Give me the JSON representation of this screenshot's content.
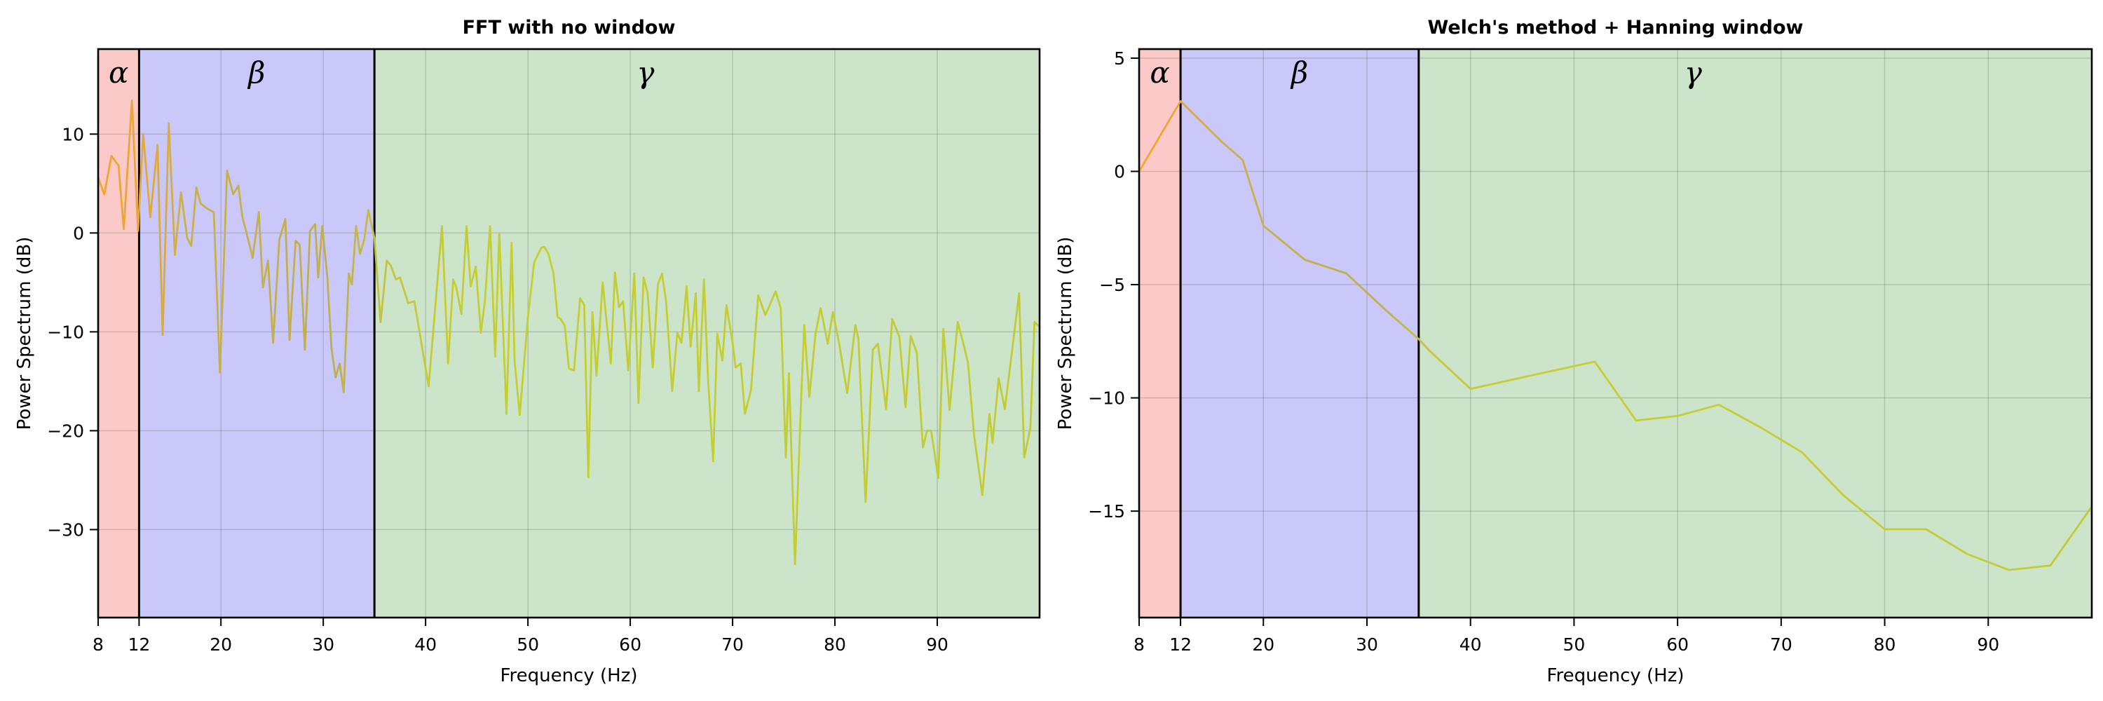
{
  "figure": {
    "background": "#ffffff",
    "grid_color": "rgba(70,70,70,0.22)",
    "spine_color": "#000000",
    "band_boundary_color": "#000000",
    "line_gradient": [
      [
        8,
        "#F3A72D"
      ],
      [
        12,
        "#E7A739"
      ],
      [
        17,
        "#C9B04E"
      ],
      [
        31,
        "#BDAF4F"
      ],
      [
        37,
        "#C6C73B"
      ],
      [
        47,
        "#C5CF33"
      ],
      [
        100,
        "#C2CB35"
      ]
    ]
  },
  "chart_data": [
    {
      "type": "line",
      "title": "FFT with no window",
      "xlabel": "Frequency (Hz)",
      "ylabel": "Power Spectrum (dB)",
      "xlim": [
        8,
        100
      ],
      "ylim": [
        -38.9,
        18.6
      ],
      "xticks": [
        8,
        12,
        20,
        30,
        40,
        50,
        60,
        70,
        80,
        90
      ],
      "yticks": [
        10,
        0,
        -10,
        -20,
        -30
      ],
      "grid": true,
      "legend": "none",
      "bands": [
        {
          "name": "alpha",
          "label": "α",
          "x0": 8,
          "x1": 12,
          "label_x": 10,
          "fill": "#FBC9C7"
        },
        {
          "name": "beta",
          "label": "β",
          "x0": 12,
          "x1": 35,
          "label_x": 23.5,
          "fill": "#C9C8F8"
        },
        {
          "name": "gamma",
          "label": "γ",
          "x0": 35,
          "x1": 100,
          "label_x": 61.5,
          "fill": "#CBE4CA"
        }
      ],
      "series": [
        {
          "name": "fft-power-spectrum",
          "points": [
            [
              8.0,
              5.6
            ],
            [
              8.6,
              3.9
            ],
            [
              9.3,
              7.8
            ],
            [
              10.0,
              6.8
            ],
            [
              10.5,
              0.4
            ],
            [
              11.3,
              13.4
            ],
            [
              11.9,
              0.2
            ],
            [
              12.4,
              10.0
            ],
            [
              13.1,
              1.6
            ],
            [
              13.8,
              8.9
            ],
            [
              14.3,
              -10.3
            ],
            [
              14.9,
              11.1
            ],
            [
              15.5,
              -2.2
            ],
            [
              16.1,
              4.1
            ],
            [
              16.7,
              -0.5
            ],
            [
              17.1,
              -1.3
            ],
            [
              17.6,
              4.6
            ],
            [
              18.0,
              3.0
            ],
            [
              18.6,
              2.5
            ],
            [
              19.3,
              2.1
            ],
            [
              19.9,
              -14.1
            ],
            [
              20.6,
              6.3
            ],
            [
              21.2,
              3.9
            ],
            [
              21.7,
              4.8
            ],
            [
              22.1,
              1.6
            ],
            [
              22.5,
              0.0
            ],
            [
              23.1,
              -2.5
            ],
            [
              23.7,
              2.1
            ],
            [
              24.1,
              -5.5
            ],
            [
              24.6,
              -2.8
            ],
            [
              25.1,
              -11.1
            ],
            [
              25.7,
              -0.7
            ],
            [
              26.3,
              1.4
            ],
            [
              26.7,
              -10.8
            ],
            [
              27.3,
              -0.8
            ],
            [
              27.7,
              -1.2
            ],
            [
              28.2,
              -11.8
            ],
            [
              28.7,
              0.2
            ],
            [
              29.2,
              0.9
            ],
            [
              29.5,
              -4.5
            ],
            [
              29.9,
              0.7
            ],
            [
              30.4,
              -4.5
            ],
            [
              30.8,
              -11.6
            ],
            [
              31.2,
              -14.6
            ],
            [
              31.6,
              -13.2
            ],
            [
              32.0,
              -16.1
            ],
            [
              32.5,
              -4.1
            ],
            [
              32.8,
              -5.2
            ],
            [
              33.2,
              0.7
            ],
            [
              33.6,
              -2.1
            ],
            [
              34.0,
              -0.7
            ],
            [
              34.4,
              2.3
            ],
            [
              35.0,
              -0.5
            ],
            [
              35.6,
              -9.0
            ],
            [
              36.2,
              -2.8
            ],
            [
              36.6,
              -3.3
            ],
            [
              37.1,
              -4.7
            ],
            [
              37.5,
              -4.5
            ],
            [
              38.3,
              -7.1
            ],
            [
              38.9,
              -6.9
            ],
            [
              40.3,
              -15.5
            ],
            [
              41.6,
              0.7
            ],
            [
              42.2,
              -13.2
            ],
            [
              42.7,
              -4.7
            ],
            [
              43.0,
              -5.5
            ],
            [
              43.5,
              -8.2
            ],
            [
              44.0,
              0.7
            ],
            [
              44.4,
              -5.4
            ],
            [
              44.9,
              -3.4
            ],
            [
              45.4,
              -10.1
            ],
            [
              45.8,
              -6.8
            ],
            [
              46.3,
              0.7
            ],
            [
              46.8,
              -12.5
            ],
            [
              47.2,
              0.0
            ],
            [
              47.9,
              -18.3
            ],
            [
              48.4,
              -1.0
            ],
            [
              48.7,
              -13.0
            ],
            [
              49.2,
              -18.4
            ],
            [
              50.0,
              -8.5
            ],
            [
              50.6,
              -3.0
            ],
            [
              51.3,
              -1.5
            ],
            [
              51.6,
              -1.4
            ],
            [
              52.0,
              -2.1
            ],
            [
              52.5,
              -4.1
            ],
            [
              52.9,
              -8.5
            ],
            [
              53.2,
              -8.7
            ],
            [
              53.6,
              -9.4
            ],
            [
              54.0,
              -13.7
            ],
            [
              54.5,
              -13.9
            ],
            [
              55.1,
              -6.6
            ],
            [
              55.5,
              -7.3
            ],
            [
              55.9,
              -24.7
            ],
            [
              56.3,
              -8.0
            ],
            [
              56.7,
              -14.4
            ],
            [
              57.3,
              -5.0
            ],
            [
              58.1,
              -13.2
            ],
            [
              58.5,
              -4.0
            ],
            [
              58.9,
              -7.5
            ],
            [
              59.3,
              -6.9
            ],
            [
              59.8,
              -13.9
            ],
            [
              60.4,
              -4.1
            ],
            [
              60.8,
              -17.2
            ],
            [
              61.3,
              -4.5
            ],
            [
              61.7,
              -6.1
            ],
            [
              62.2,
              -13.6
            ],
            [
              62.7,
              -5.2
            ],
            [
              63.1,
              -4.1
            ],
            [
              63.5,
              -6.9
            ],
            [
              64.1,
              -16.0
            ],
            [
              64.6,
              -10.1
            ],
            [
              65.0,
              -11.1
            ],
            [
              65.5,
              -5.4
            ],
            [
              65.9,
              -11.5
            ],
            [
              66.4,
              -6.1
            ],
            [
              66.7,
              -16.0
            ],
            [
              67.2,
              -4.7
            ],
            [
              67.6,
              -14.7
            ],
            [
              68.1,
              -23.1
            ],
            [
              68.5,
              -10.2
            ],
            [
              69.0,
              -12.9
            ],
            [
              69.4,
              -7.3
            ],
            [
              70.0,
              -11.1
            ],
            [
              70.3,
              -13.6
            ],
            [
              70.8,
              -13.2
            ],
            [
              71.2,
              -18.3
            ],
            [
              71.8,
              -15.9
            ],
            [
              72.5,
              -6.3
            ],
            [
              73.2,
              -8.3
            ],
            [
              74.2,
              -5.9
            ],
            [
              74.7,
              -7.6
            ],
            [
              75.2,
              -22.7
            ],
            [
              75.5,
              -14.2
            ],
            [
              76.1,
              -33.5
            ],
            [
              76.7,
              -16.7
            ],
            [
              77.0,
              -9.3
            ],
            [
              77.5,
              -16.6
            ],
            [
              78.1,
              -10.2
            ],
            [
              78.6,
              -7.6
            ],
            [
              79.3,
              -11.2
            ],
            [
              79.8,
              -8.0
            ],
            [
              80.4,
              -11.1
            ],
            [
              81.2,
              -16.2
            ],
            [
              82.0,
              -9.3
            ],
            [
              82.3,
              -10.7
            ],
            [
              83.0,
              -27.2
            ],
            [
              83.7,
              -11.8
            ],
            [
              84.2,
              -11.2
            ],
            [
              85.0,
              -17.8
            ],
            [
              85.6,
              -8.7
            ],
            [
              86.3,
              -10.5
            ],
            [
              86.9,
              -17.6
            ],
            [
              87.4,
              -10.4
            ],
            [
              88.0,
              -12.1
            ],
            [
              88.6,
              -21.7
            ],
            [
              89.0,
              -20.0
            ],
            [
              89.4,
              -20.0
            ],
            [
              90.1,
              -24.8
            ],
            [
              90.6,
              -9.7
            ],
            [
              91.2,
              -17.9
            ],
            [
              92.0,
              -9.0
            ],
            [
              92.6,
              -11.4
            ],
            [
              93.0,
              -13.1
            ],
            [
              93.6,
              -20.5
            ],
            [
              94.4,
              -26.5
            ],
            [
              95.1,
              -18.3
            ],
            [
              95.4,
              -21.2
            ],
            [
              96.0,
              -14.7
            ],
            [
              96.6,
              -17.8
            ],
            [
              97.3,
              -12.0
            ],
            [
              98.0,
              -6.1
            ],
            [
              98.5,
              -22.7
            ],
            [
              99.1,
              -19.7
            ],
            [
              99.5,
              -9.0
            ],
            [
              100.0,
              -9.5
            ]
          ]
        }
      ]
    },
    {
      "type": "line",
      "title": "Welch's method + Hanning window",
      "xlabel": "Frequency (Hz)",
      "ylabel": "Power Spectrum (dB)",
      "xlim": [
        8,
        100
      ],
      "ylim": [
        -19.7,
        5.4
      ],
      "xticks": [
        8,
        12,
        20,
        30,
        40,
        50,
        60,
        70,
        80,
        90
      ],
      "yticks": [
        5,
        0,
        -5,
        -10,
        -15
      ],
      "grid": true,
      "legend": "none",
      "bands": [
        {
          "name": "alpha",
          "label": "α",
          "x0": 8,
          "x1": 12,
          "label_x": 10,
          "fill": "#FBC9C7"
        },
        {
          "name": "beta",
          "label": "β",
          "x0": 12,
          "x1": 35,
          "label_x": 23.5,
          "fill": "#C9C8F8"
        },
        {
          "name": "gamma",
          "label": "γ",
          "x0": 35,
          "x1": 100,
          "label_x": 61.5,
          "fill": "#CBE4CA"
        }
      ],
      "series": [
        {
          "name": "welch-power-spectrum",
          "points": [
            [
              8,
              0.0
            ],
            [
              12,
              3.1
            ],
            [
              16,
              1.3
            ],
            [
              18,
              0.5
            ],
            [
              20,
              -2.4
            ],
            [
              24,
              -3.9
            ],
            [
              28,
              -4.5
            ],
            [
              32,
              -6.2
            ],
            [
              35,
              -7.4
            ],
            [
              36,
              -7.9
            ],
            [
              40,
              -9.6
            ],
            [
              44,
              -9.2
            ],
            [
              48,
              -8.8
            ],
            [
              52,
              -8.4
            ],
            [
              56,
              -11.0
            ],
            [
              60,
              -10.8
            ],
            [
              64,
              -10.3
            ],
            [
              68,
              -11.3
            ],
            [
              72,
              -12.4
            ],
            [
              76,
              -14.3
            ],
            [
              80,
              -15.8
            ],
            [
              84,
              -15.8
            ],
            [
              88,
              -16.9
            ],
            [
              92,
              -17.6
            ],
            [
              96,
              -17.4
            ],
            [
              100,
              -14.8
            ]
          ]
        }
      ]
    }
  ]
}
